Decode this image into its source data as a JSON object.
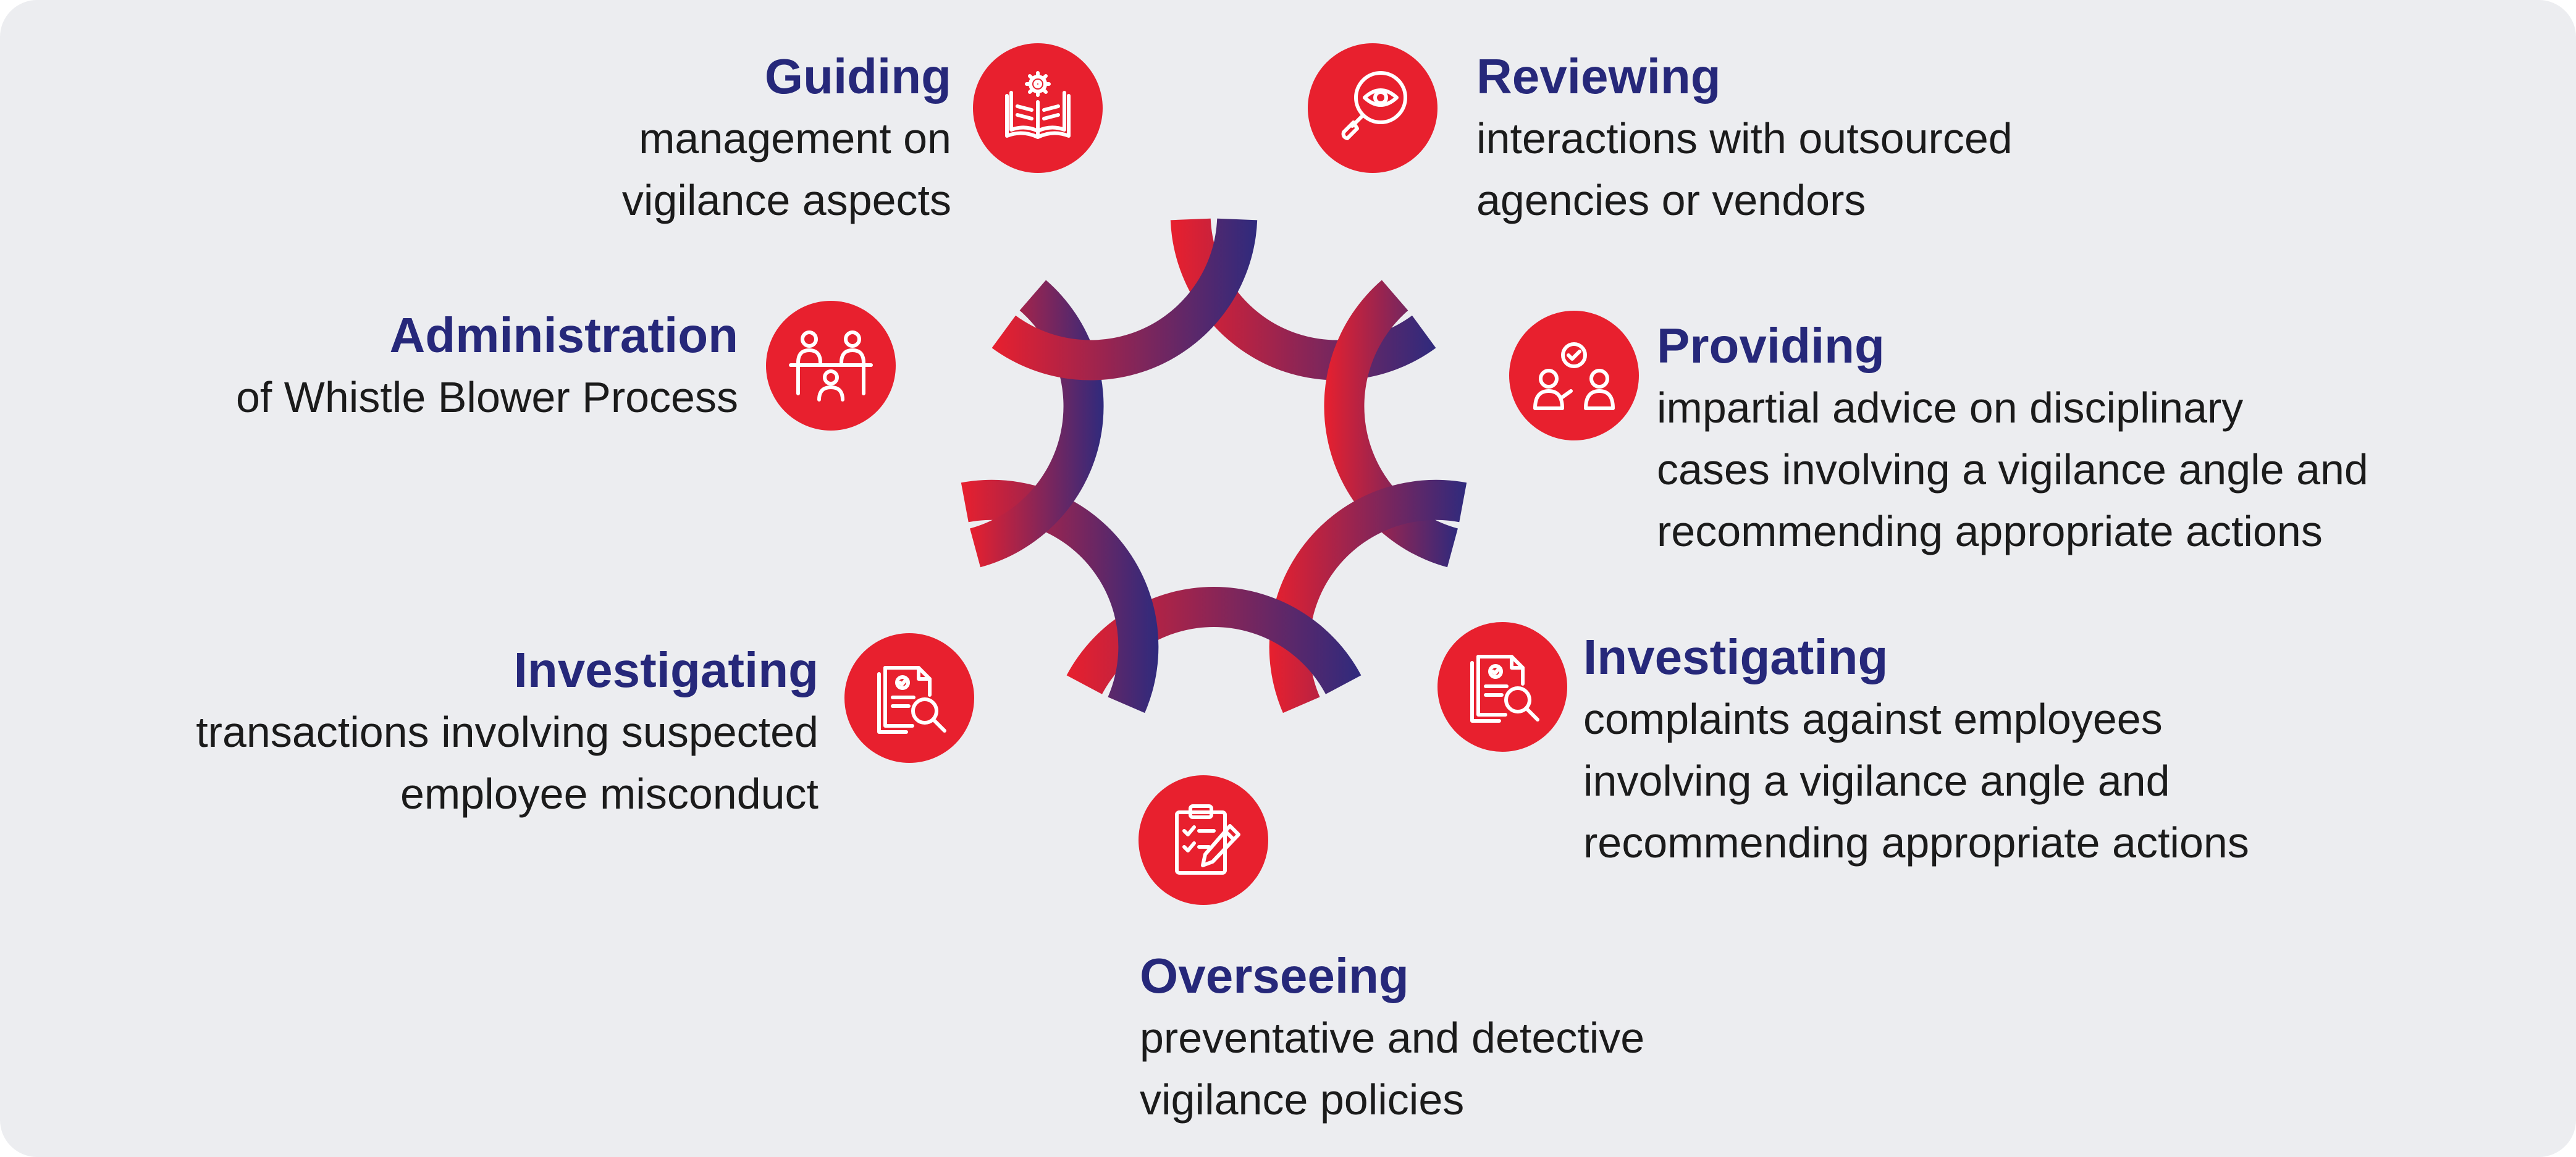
{
  "colors": {
    "background": "#ecedf0",
    "icon_red": "#e8202e",
    "title_navy": "#26287a",
    "text": "#1b1b1b",
    "arc_red": "#e8202e",
    "arc_navy": "#2f2a7d"
  },
  "items": [
    {
      "id": "guiding",
      "icon": "book-gear-icon",
      "title": "Guiding",
      "lines": [
        "management on",
        "vigilance aspects"
      ]
    },
    {
      "id": "reviewing",
      "icon": "magnifier-eye-icon",
      "title": "Reviewing",
      "lines": [
        "interactions with outsourced",
        "agencies or vendors"
      ]
    },
    {
      "id": "administration",
      "icon": "meeting-desk-icon",
      "title": "Administration",
      "lines": [
        "of Whistle Blower Process"
      ]
    },
    {
      "id": "providing",
      "icon": "advisory-people-icon",
      "title": "Providing",
      "lines": [
        "impartial advice on disciplinary",
        "cases involving a vigilance angle and",
        "recommending appropriate actions"
      ]
    },
    {
      "id": "investigating_transactions",
      "icon": "document-search-icon",
      "title": "Investigating",
      "lines": [
        "transactions involving suspected",
        "employee misconduct"
      ]
    },
    {
      "id": "investigating_complaints",
      "icon": "document-search-icon",
      "title": "Investigating",
      "lines": [
        "complaints against employees",
        "involving a vigilance angle and",
        "recommending appropriate actions"
      ]
    },
    {
      "id": "overseeing",
      "icon": "clipboard-pen-icon",
      "title": "Overseeing",
      "lines": [
        "preventative and detective",
        "vigilance policies"
      ]
    }
  ]
}
